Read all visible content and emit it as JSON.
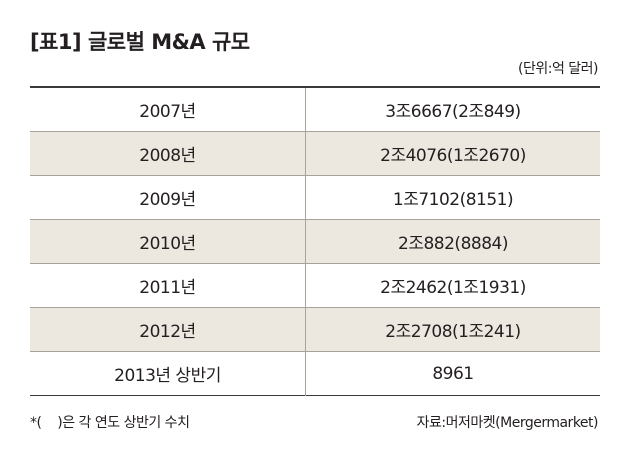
{
  "header": {
    "title": "[표1] 글로벌 M&A 규모",
    "unit": "(단위:억 달러)"
  },
  "table": {
    "rows": [
      [
        "2007년",
        "3조6667(2조849)"
      ],
      [
        "2008년",
        "2조4076(1조2670)"
      ],
      [
        "2009년",
        "1조7102(8151)"
      ],
      [
        "2010년",
        "2조882(8884)"
      ],
      [
        "2011년",
        "2조2462(1조1931)"
      ],
      [
        "2012년",
        "2조2708(1조241)"
      ],
      [
        "2013년 상반기",
        "8961"
      ]
    ]
  },
  "footer": {
    "note": "*(    )은 각 연도 상반기 수치",
    "source": "자료:머저마켓(Mergermarket)"
  }
}
